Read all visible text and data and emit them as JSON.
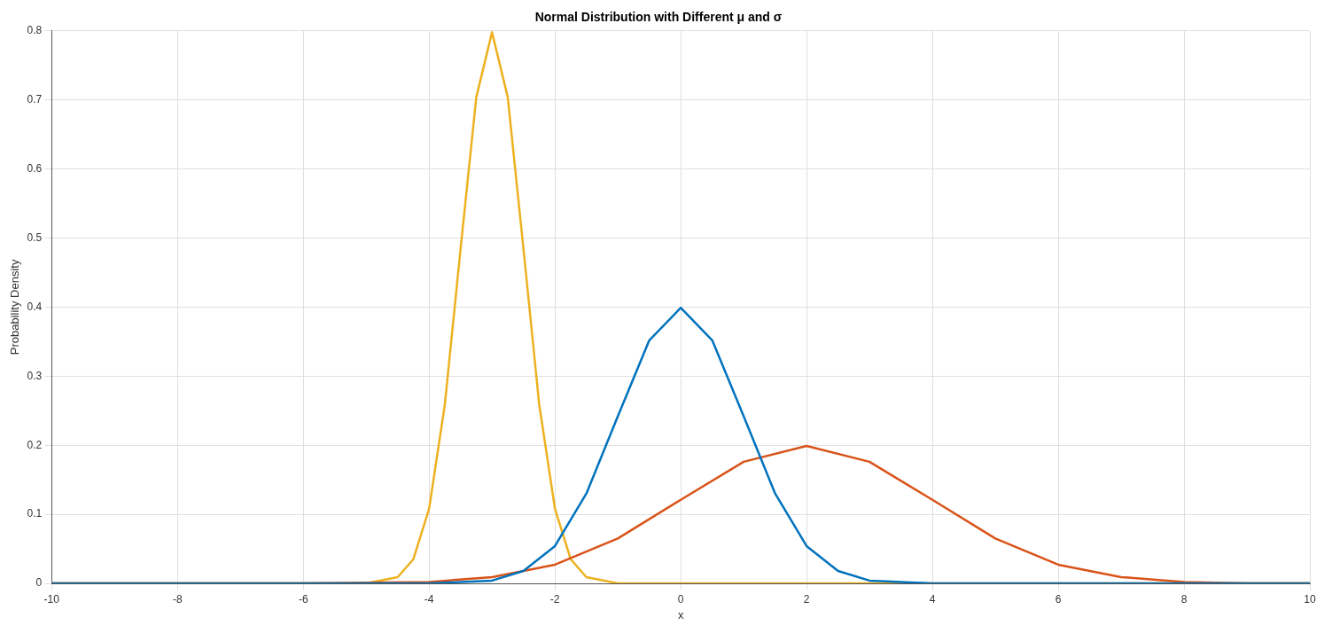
{
  "chart_data": {
    "type": "line",
    "title": "Normal Distribution with Different μ and σ",
    "xlabel": "x",
    "ylabel": "Probability Density",
    "xlim": [
      -10,
      10
    ],
    "xticks": [
      -10,
      -8,
      -6,
      -4,
      -2,
      0,
      2,
      4,
      6,
      8,
      10
    ],
    "ylim": [
      0,
      0.8
    ],
    "yticks": [
      0,
      0.1,
      0.2,
      0.3,
      0.4,
      0.5,
      0.6,
      0.7,
      0.8
    ],
    "grid": true,
    "legend": false,
    "marker": "none",
    "line_style": "solid",
    "series": [
      {
        "color": "#0072bd",
        "x": [
          -10,
          -4,
          -3,
          -2.5,
          -2,
          -1.5,
          -1,
          -0.5,
          0,
          0.5,
          1,
          1.5,
          2,
          2.5,
          3,
          4,
          10
        ],
        "values": [
          0,
          0,
          0.004,
          0.018,
          0.054,
          0.13,
          0.242,
          0.352,
          0.399,
          0.352,
          0.242,
          0.13,
          0.054,
          0.018,
          0.004,
          0,
          0
        ]
      },
      {
        "color": "#d95319",
        "x": [
          -10,
          -6,
          -4,
          -3,
          -2,
          -1,
          0,
          1,
          2,
          3,
          4,
          5,
          6,
          7,
          8,
          9,
          10
        ],
        "values": [
          0,
          0,
          0.002,
          0.009,
          0.027,
          0.065,
          0.121,
          0.176,
          0.199,
          0.176,
          0.121,
          0.065,
          0.027,
          0.009,
          0.002,
          0,
          0
        ]
      },
      {
        "color": "#edb120",
        "x": [
          -10,
          -5,
          -4.5,
          -4.25,
          -4,
          -3.75,
          -3.5,
          -3.25,
          -3,
          -2.75,
          -2.5,
          -2.25,
          -2,
          -1.75,
          -1.5,
          -1,
          10
        ],
        "values": [
          0,
          0,
          0.009,
          0.035,
          0.108,
          0.259,
          0.484,
          0.704,
          0.798,
          0.704,
          0.484,
          0.259,
          0.108,
          0.035,
          0.009,
          0,
          0
        ]
      }
    ]
  }
}
